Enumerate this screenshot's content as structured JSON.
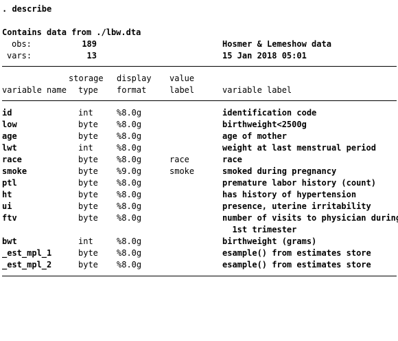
{
  "command": ". describe",
  "header": {
    "contains_label": "Contains data from ./lbw.dta",
    "obs_label": "obs:",
    "obs_value": "189",
    "vars_label": "vars:",
    "vars_value": "13",
    "data_label": "Hosmer & Lemeshow data",
    "timestamp": "15 Jan 2018 05:01"
  },
  "columns": {
    "storage_top": "storage",
    "display_top": "display",
    "value_top": "value",
    "variable_name": "variable name",
    "type": "type",
    "format": "format",
    "label": "label",
    "variable_label": "variable label"
  },
  "rows": [
    {
      "name": "id",
      "type": "int",
      "format": "%8.0g",
      "value_label": "",
      "label": "identification code"
    },
    {
      "name": "low",
      "type": "byte",
      "format": "%8.0g",
      "value_label": "",
      "label": "birthweight<2500g"
    },
    {
      "name": "age",
      "type": "byte",
      "format": "%8.0g",
      "value_label": "",
      "label": "age of mother"
    },
    {
      "name": "lwt",
      "type": "int",
      "format": "%8.0g",
      "value_label": "",
      "label": "weight at last menstrual period"
    },
    {
      "name": "race",
      "type": "byte",
      "format": "%8.0g",
      "value_label": "race",
      "label": "race"
    },
    {
      "name": "smoke",
      "type": "byte",
      "format": "%9.0g",
      "value_label": "smoke",
      "label": "smoked during pregnancy"
    },
    {
      "name": "ptl",
      "type": "byte",
      "format": "%8.0g",
      "value_label": "",
      "label": "premature labor history (count)"
    },
    {
      "name": "ht",
      "type": "byte",
      "format": "%8.0g",
      "value_label": "",
      "label": "has history of hypertension"
    },
    {
      "name": "ui",
      "type": "byte",
      "format": "%8.0g",
      "value_label": "",
      "label": "presence, uterine irritability"
    },
    {
      "name": "ftv",
      "type": "byte",
      "format": "%8.0g",
      "value_label": "",
      "label": "number of visits to physician during"
    },
    {
      "name": "",
      "type": "",
      "format": "",
      "value_label": "",
      "label": "  1st trimester"
    },
    {
      "name": "bwt",
      "type": "int",
      "format": "%8.0g",
      "value_label": "",
      "label": "birthweight (grams)"
    },
    {
      "name": "_est_mpl_1",
      "type": "byte",
      "format": "%8.0g",
      "value_label": "",
      "label": "esample() from estimates store"
    },
    {
      "name": "_est_mpl_2",
      "type": "byte",
      "format": "%8.0g",
      "value_label": "",
      "label": "esample() from estimates store"
    }
  ]
}
